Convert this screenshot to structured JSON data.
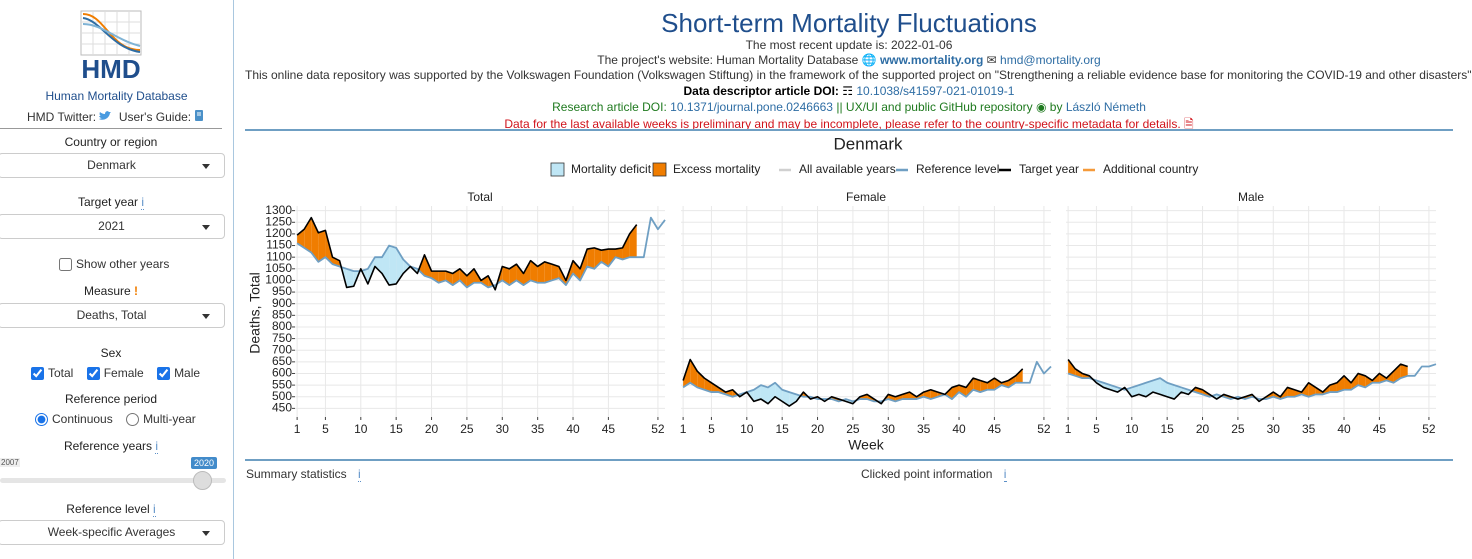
{
  "sidebar": {
    "logo_text": "HMD",
    "name": "Human Mortality Database",
    "twitter": "HMD Twitter:",
    "guide": "User's Guide:",
    "country_label": "Country or region",
    "country": "Denmark",
    "year_label": "Target year",
    "year": "2021",
    "show_other": "Show other years",
    "measure_label": "Measure",
    "measure": "Deaths, Total",
    "sex_label": "Sex",
    "sexes": [
      "Total",
      "Female",
      "Male"
    ],
    "period_label": "Reference period",
    "periods": [
      "Continuous",
      "Multi-year"
    ],
    "ref_years_label": "Reference years",
    "ref_years": [
      "2007",
      "2020"
    ],
    "level_label": "Reference level",
    "level": "Week-specific Averages"
  },
  "header": {
    "title": "Short-term Mortality Fluctuations",
    "update": "The most recent update is: 2022-01-06",
    "website": {
      "prefix": "The project's website: Human Mortality Database",
      "url": "www.mortality.org",
      "email": "hmd@mortality.org"
    },
    "funding": "This online data repository was supported by the Volkswagen Foundation (Volkswagen Stiftung) in the framework of the supported project on \"Strengthening a reliable evidence base for monitoring the COVID-19 and other disasters\"",
    "descriptor": {
      "prefix": "Data descriptor article DOI:",
      "doi": "10.1038/s41597-021-01019-1"
    },
    "research": {
      "prefix": "Research article DOI:",
      "doi": "10.1371/journal.pone.0246663",
      "middle": "|| UX/UI and public GitHub repository",
      "by": "by",
      "author": "László Németh"
    },
    "warning": "Data for the last available weeks is preliminary and may be incomplete, please refer to the country-specific metadata for details."
  },
  "figure": {
    "title": "Denmark",
    "legend": [
      {
        "name": "Mortality deficit",
        "color": "#bfe6f5"
      },
      {
        "name": "Excess mortality",
        "color": "#f07d00"
      },
      {
        "name": "All available years",
        "color": "#d0d0d0"
      },
      {
        "name": "Additional country",
        "color": "#f59a3a"
      }
    ]
  },
  "chart_data": [
    {
      "type": "line",
      "title": "Total",
      "ylabel": "Deaths, Total",
      "excess_color": "#f07d00",
      "deficit_color": "#bfe6f5",
      "grid": true,
      "x": [
        1,
        2,
        3,
        4,
        5,
        6,
        7,
        8,
        9,
        10,
        11,
        12,
        13,
        14,
        15,
        16,
        17,
        18,
        19,
        20,
        21,
        22,
        23,
        24,
        25,
        26,
        27,
        28,
        29,
        30,
        31,
        32,
        33,
        34,
        35,
        36,
        37,
        38,
        39,
        40,
        41,
        42,
        43,
        44,
        45,
        46,
        47,
        48,
        49,
        50,
        51,
        52,
        53
      ],
      "xlim": [
        0.7,
        53
      ],
      "xticks": [
        1,
        5,
        10,
        15,
        20,
        25,
        30,
        35,
        40,
        45,
        52
      ],
      "ylim": [
        400,
        1320
      ],
      "yticks": [
        450,
        500,
        550,
        600,
        650,
        700,
        750,
        800,
        850,
        900,
        950,
        1000,
        1050,
        1100,
        1150,
        1200,
        1250,
        1300
      ],
      "series": [
        {
          "name": "Reference level",
          "color": "#6f9fc3",
          "values": [
            1160,
            1140,
            1120,
            1080,
            1100,
            1070,
            1060,
            1050,
            1040,
            1040,
            1050,
            1100,
            1100,
            1150,
            1140,
            1090,
            1060,
            1050,
            1020,
            1010,
            990,
            1000,
            980,
            1000,
            970,
            990,
            990,
            970,
            980,
            1000,
            980,
            1000,
            980,
            1000,
            990,
            990,
            1000,
            1010,
            980,
            1030,
            1000,
            1060,
            1050,
            1080,
            1060,
            1100,
            1090,
            1100,
            1100,
            1100,
            1270,
            1220,
            1260
          ]
        },
        {
          "name": "Target year",
          "color": "#000000",
          "values": [
            1195,
            1220,
            1270,
            1205,
            1215,
            1100,
            1085,
            970,
            975,
            1050,
            985,
            1060,
            1030,
            980,
            985,
            1030,
            1060,
            1030,
            1110,
            1040,
            1040,
            1040,
            1030,
            1050,
            1020,
            1050,
            1000,
            1020,
            960,
            1060,
            1050,
            1070,
            1030,
            1085,
            1060,
            1080,
            1070,
            1060,
            1000,
            1085,
            1050,
            1135,
            1140,
            1130,
            1135,
            1135,
            1140,
            1200,
            1240,
            null,
            null,
            null,
            null
          ]
        }
      ]
    },
    {
      "type": "line",
      "title": "Female",
      "xlabel": "Week",
      "excess_color": "#f07d00",
      "deficit_color": "#bfe6f5",
      "grid": true,
      "x": [
        1,
        2,
        3,
        4,
        5,
        6,
        7,
        8,
        9,
        10,
        11,
        12,
        13,
        14,
        15,
        16,
        17,
        18,
        19,
        20,
        21,
        22,
        23,
        24,
        25,
        26,
        27,
        28,
        29,
        30,
        31,
        32,
        33,
        34,
        35,
        36,
        37,
        38,
        39,
        40,
        41,
        42,
        43,
        44,
        45,
        46,
        47,
        48,
        49,
        50,
        51,
        52,
        53
      ],
      "xlim": [
        0.7,
        53
      ],
      "xticks": [
        1,
        5,
        10,
        15,
        20,
        25,
        30,
        35,
        40,
        45,
        52
      ],
      "ylim": [
        400,
        1320
      ],
      "yticks": [
        450,
        500,
        550,
        600,
        650,
        700,
        750,
        800,
        850,
        900,
        950,
        1000,
        1050,
        1100,
        1150,
        1200,
        1250,
        1300
      ],
      "series": [
        {
          "color": "#6f9fc3",
          "values": [
            540,
            560,
            540,
            530,
            520,
            520,
            510,
            500,
            510,
            520,
            530,
            550,
            540,
            560,
            530,
            520,
            510,
            500,
            500,
            490,
            490,
            490,
            480,
            490,
            480,
            490,
            490,
            480,
            480,
            490,
            480,
            490,
            490,
            490,
            500,
            490,
            500,
            510,
            490,
            520,
            500,
            530,
            520,
            530,
            530,
            550,
            540,
            560,
            560,
            560,
            650,
            600,
            630
          ]
        },
        {
          "color": "#000000",
          "values": [
            570,
            660,
            610,
            580,
            560,
            540,
            520,
            530,
            500,
            520,
            480,
            490,
            470,
            500,
            480,
            460,
            480,
            520,
            490,
            500,
            480,
            500,
            490,
            480,
            470,
            500,
            510,
            490,
            470,
            510,
            500,
            510,
            520,
            500,
            520,
            530,
            520,
            510,
            540,
            550,
            540,
            580,
            570,
            560,
            580,
            560,
            570,
            590,
            620,
            null,
            null,
            null,
            null
          ]
        }
      ]
    },
    {
      "type": "line",
      "title": "Male",
      "excess_color": "#f07d00",
      "deficit_color": "#bfe6f5",
      "grid": true,
      "x": [
        1,
        2,
        3,
        4,
        5,
        6,
        7,
        8,
        9,
        10,
        11,
        12,
        13,
        14,
        15,
        16,
        17,
        18,
        19,
        20,
        21,
        22,
        23,
        24,
        25,
        26,
        27,
        28,
        29,
        30,
        31,
        32,
        33,
        34,
        35,
        36,
        37,
        38,
        39,
        40,
        41,
        42,
        43,
        44,
        45,
        46,
        47,
        48,
        49,
        50,
        51,
        52,
        53
      ],
      "xlim": [
        0.7,
        53
      ],
      "xticks": [
        1,
        5,
        10,
        15,
        20,
        25,
        30,
        35,
        40,
        45,
        52
      ],
      "ylim": [
        400,
        1320
      ],
      "yticks": [
        450,
        500,
        550,
        600,
        650,
        700,
        750,
        800,
        850,
        900,
        950,
        1000,
        1050,
        1100,
        1150,
        1200,
        1250,
        1300
      ],
      "series": [
        {
          "color": "#6f9fc3",
          "values": [
            600,
            590,
            580,
            580,
            570,
            560,
            550,
            540,
            530,
            540,
            550,
            560,
            570,
            580,
            560,
            550,
            540,
            530,
            520,
            510,
            500,
            510,
            500,
            490,
            500,
            490,
            500,
            490,
            490,
            500,
            490,
            500,
            500,
            510,
            500,
            510,
            510,
            520,
            520,
            530,
            530,
            550,
            540,
            560,
            560,
            570,
            560,
            580,
            590,
            590,
            630,
            630,
            640
          ]
        },
        {
          "color": "#000000",
          "values": [
            660,
            620,
            600,
            590,
            560,
            540,
            530,
            520,
            540,
            500,
            510,
            500,
            520,
            510,
            500,
            490,
            520,
            510,
            540,
            530,
            510,
            490,
            510,
            500,
            490,
            500,
            510,
            480,
            500,
            520,
            500,
            540,
            530,
            520,
            560,
            540,
            520,
            550,
            560,
            590,
            560,
            600,
            590,
            570,
            600,
            580,
            610,
            640,
            630,
            null,
            null,
            null,
            null
          ]
        }
      ]
    }
  ],
  "footer": {
    "summary": "Summary statistics",
    "clicked": "Clicked point information"
  }
}
